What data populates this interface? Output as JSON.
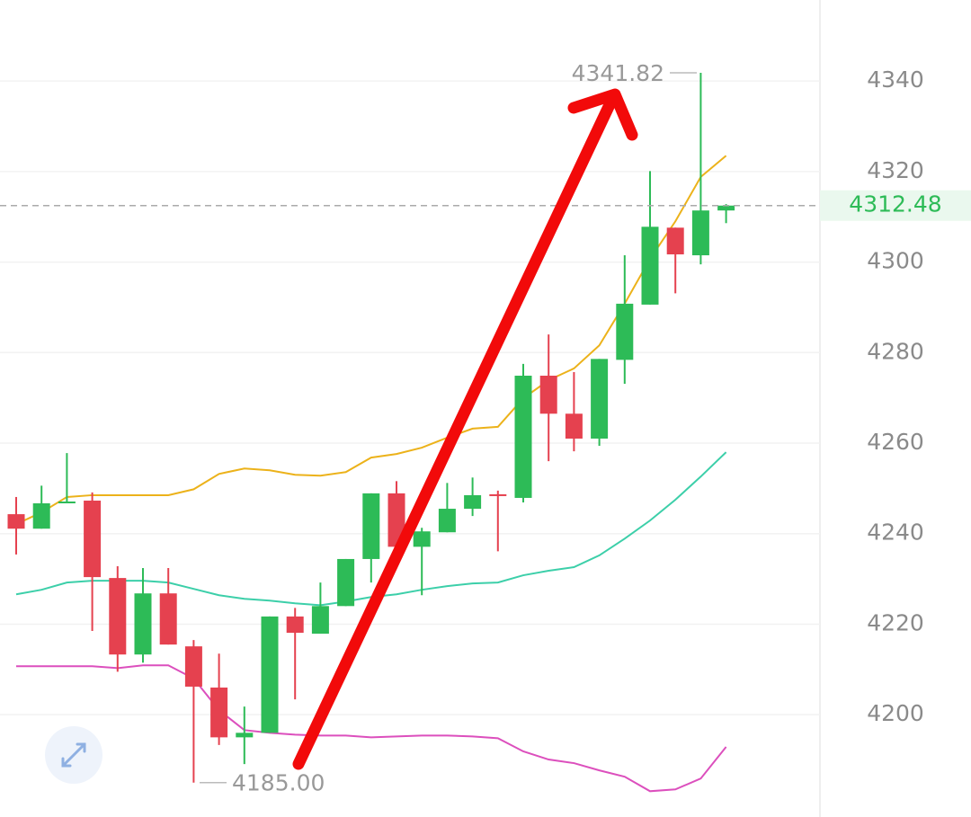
{
  "chart_data": {
    "type": "candlestick",
    "open": [
      4244.3,
      4241.1,
      4246.7,
      4247.3,
      4230.2,
      4213.3,
      4226.8,
      4215.1,
      4206.0,
      4195.0,
      4196.0,
      4221.7,
      4217.9,
      4224.0,
      4234.4,
      4248.9,
      4237.1,
      4240.3,
      4245.5,
      4248.7,
      4247.9,
      4274.9,
      4266.5,
      4261.0,
      4278.4,
      4290.6,
      4307.6,
      4301.5,
      4311.4
    ],
    "high": [
      4248.1,
      4250.6,
      4257.8,
      4249.1,
      4232.8,
      4232.4,
      4232.4,
      4216.5,
      4213.5,
      4201.8,
      4221.7,
      4223.6,
      4229.2,
      4234.4,
      4248.9,
      4251.6,
      4241.3,
      4251.2,
      4252.4,
      4249.5,
      4277.5,
      4284.0,
      4275.7,
      4278.6,
      4301.5,
      4320.1,
      4307.6,
      4341.82,
      4312.8
    ],
    "low": [
      4235.4,
      4241.1,
      4246.7,
      4218.5,
      4209.5,
      4211.5,
      4215.5,
      4185.0,
      4193.3,
      4189.1,
      4196.0,
      4203.4,
      4217.9,
      4224.0,
      4229.2,
      4237.1,
      4226.4,
      4240.3,
      4243.9,
      4236.1,
      4246.9,
      4256.0,
      4258.2,
      4259.4,
      4273.1,
      4290.6,
      4293.1,
      4299.5,
      4308.6
    ],
    "close": [
      4241.1,
      4246.7,
      4247.1,
      4230.4,
      4213.3,
      4226.8,
      4215.5,
      4206.2,
      4195.0,
      4196.0,
      4221.7,
      4218.1,
      4224.0,
      4234.4,
      4248.9,
      4237.1,
      4240.5,
      4245.5,
      4248.5,
      4248.3,
      4274.9,
      4266.5,
      4261.0,
      4278.6,
      4290.8,
      4307.8,
      4301.7,
      4311.4,
      4312.48
    ],
    "up_color": "#2dbb57",
    "down_color": "#e5414f",
    "lines": [
      {
        "color": "#ecb21a",
        "values": [
          4242.1,
          4244.7,
          4248.1,
          4248.5,
          4248.5,
          4248.5,
          4248.5,
          4249.8,
          4253.2,
          4254.4,
          4254.0,
          4253.0,
          4252.8,
          4253.6,
          4256.8,
          4257.6,
          4259.0,
          4261.2,
          4263.2,
          4263.6,
          4269.9,
          4273.9,
          4276.5,
          4281.6,
          4290.8,
          4300.7,
          4309.0,
          4318.8,
          4323.5
        ]
      },
      {
        "color": "#3ccfa9",
        "values": [
          4226.6,
          4227.6,
          4229.2,
          4229.6,
          4229.6,
          4229.6,
          4229.2,
          4227.8,
          4226.4,
          4225.6,
          4225.2,
          4224.6,
          4224.2,
          4225.0,
          4226.0,
          4226.6,
          4227.6,
          4228.4,
          4229.0,
          4229.2,
          4230.8,
          4231.8,
          4232.6,
          4235.2,
          4238.9,
          4242.9,
          4247.5,
          4252.6,
          4258.0
        ]
      },
      {
        "color": "#dc4fbd",
        "values": [
          4210.7,
          4210.7,
          4210.7,
          4210.7,
          4210.3,
          4210.9,
          4210.9,
          4208.0,
          4201.0,
          4196.6,
          4196.0,
          4195.6,
          4195.4,
          4195.4,
          4195.0,
          4195.2,
          4195.4,
          4195.4,
          4195.2,
          4194.8,
          4191.9,
          4190.1,
          4189.3,
          4187.7,
          4186.3,
          4183.1,
          4183.5,
          4185.9,
          4192.9
        ]
      }
    ],
    "ylim": [
      4177.4,
      4357.9
    ],
    "yticks": [
      4200,
      4220,
      4240,
      4260,
      4280,
      4300,
      4320,
      4340
    ],
    "grid": true,
    "last_price": 4312.48,
    "high_label": 4341.82,
    "low_label": {
      "value": 4185,
      "label": "4185.00"
    }
  }
}
